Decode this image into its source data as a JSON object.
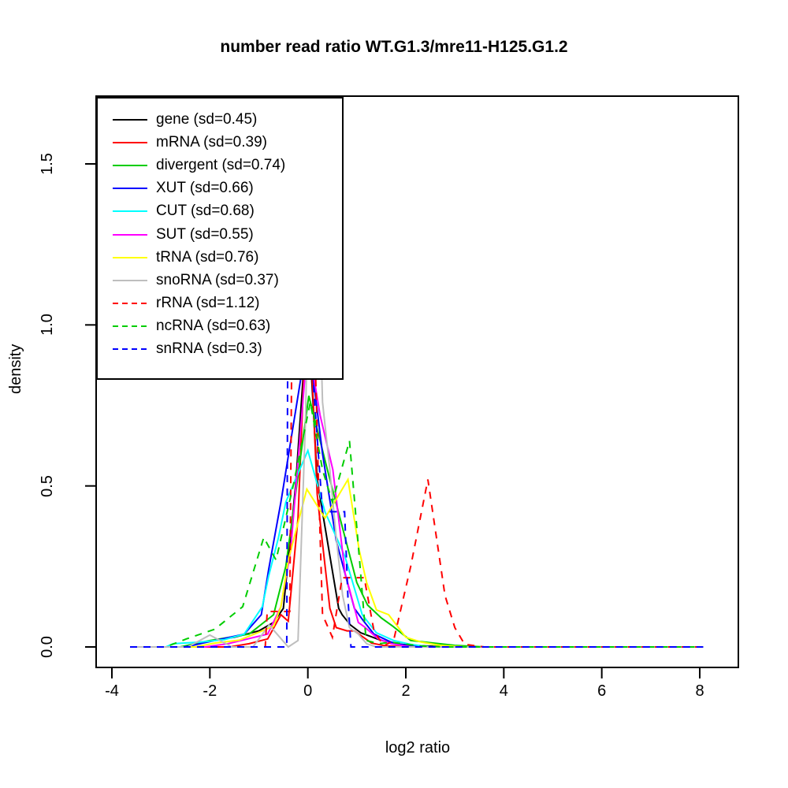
{
  "title": "number read ratio WT.G1.3/mre11-H125.G1.2",
  "axes": {
    "x": {
      "label": "log2 ratio",
      "tick_labels": [
        "-4",
        "-2",
        "0",
        "2",
        "4",
        "6",
        "8"
      ],
      "tick_values": [
        -4,
        -2,
        0,
        2,
        4,
        6,
        8
      ]
    },
    "y": {
      "label": "density",
      "tick_labels": [
        "0.0",
        "0.5",
        "1.0",
        "1.5"
      ],
      "tick_values": [
        0,
        0.5,
        1.0,
        1.5
      ]
    }
  },
  "legend": {
    "position": "top-left"
  },
  "chart_data": {
    "type": "line",
    "title": "number read ratio WT.G1.3/mre11-H125.G1.2",
    "xlabel": "log2 ratio",
    "ylabel": "density",
    "xlim": [
      -4.5,
      8.8
    ],
    "ylim": [
      0,
      1.71
    ],
    "grid": false,
    "legend_position": "top-left",
    "series": [
      {
        "id": "gene",
        "name": "gene (sd=0.45)",
        "color": "#000000",
        "style": "solid",
        "points": [
          [
            -3.63,
            0
          ],
          [
            -2.6,
            0
          ],
          [
            -2.1,
            0.015
          ],
          [
            -1.5,
            0.03
          ],
          [
            -1.0,
            0.05
          ],
          [
            -0.7,
            0.076
          ],
          [
            -0.5,
            0.12
          ],
          [
            -0.25,
            0.5
          ],
          [
            0,
            1.05
          ],
          [
            0.19,
            0.52
          ],
          [
            0.31,
            0.41
          ],
          [
            0.63,
            0.12
          ],
          [
            0.7,
            0.1
          ],
          [
            0.87,
            0.068
          ],
          [
            1.08,
            0.044
          ],
          [
            1.43,
            0.024
          ],
          [
            1.7,
            0.012
          ],
          [
            2.1,
            0.005
          ],
          [
            2.6,
            0.002
          ],
          [
            3.2,
            0
          ],
          [
            8.07,
            0
          ]
        ]
      },
      {
        "id": "mRNA",
        "name": "mRNA (sd=0.39)",
        "color": "#FF0000",
        "style": "solid",
        "points": [
          [
            -3.63,
            0
          ],
          [
            -1.6,
            0
          ],
          [
            -1.2,
            0.01
          ],
          [
            -0.82,
            0.025
          ],
          [
            -0.55,
            0.1
          ],
          [
            -0.4,
            0.08
          ],
          [
            -0.2,
            0.4
          ],
          [
            0,
            1.15
          ],
          [
            0.19,
            0.475
          ],
          [
            0.27,
            0.36
          ],
          [
            0.45,
            0.12
          ],
          [
            0.58,
            0.06
          ],
          [
            0.8,
            0.05
          ],
          [
            0.95,
            0.05
          ],
          [
            1.3,
            0.012
          ],
          [
            1.6,
            0.003
          ],
          [
            2.2,
            0
          ],
          [
            8.07,
            0
          ]
        ]
      },
      {
        "id": "divergent",
        "name": "divergent (sd=0.74)",
        "color": "#00CD00",
        "style": "solid",
        "points": [
          [
            -3.63,
            0
          ],
          [
            -2.6,
            0
          ],
          [
            -2.0,
            0.02
          ],
          [
            -1.2,
            0.04
          ],
          [
            -0.7,
            0.1
          ],
          [
            -0.45,
            0.25
          ],
          [
            0.02,
            0.78
          ],
          [
            0.4,
            0.55
          ],
          [
            0.76,
            0.34
          ],
          [
            1.0,
            0.2
          ],
          [
            1.22,
            0.13
          ],
          [
            1.5,
            0.09
          ],
          [
            1.72,
            0.066
          ],
          [
            2.1,
            0.02
          ],
          [
            2.52,
            0.013
          ],
          [
            3.0,
            0.005
          ],
          [
            3.6,
            0
          ],
          [
            8.07,
            0
          ]
        ]
      },
      {
        "id": "XUT",
        "name": "XUT (sd=0.66)",
        "color": "#0000FF",
        "style": "solid",
        "points": [
          [
            -3.63,
            0
          ],
          [
            -2.5,
            0
          ],
          [
            -1.9,
            0.02
          ],
          [
            -1.3,
            0.04
          ],
          [
            -0.95,
            0.1
          ],
          [
            -0.8,
            0.24
          ],
          [
            -0.55,
            0.45
          ],
          [
            0,
            0.97
          ],
          [
            0.3,
            0.6
          ],
          [
            0.58,
            0.33
          ],
          [
            0.95,
            0.12
          ],
          [
            1.14,
            0.08
          ],
          [
            1.35,
            0.04
          ],
          [
            1.7,
            0.015
          ],
          [
            2.0,
            0.005
          ],
          [
            2.4,
            0
          ],
          [
            8.07,
            0
          ]
        ]
      },
      {
        "id": "CUT",
        "name": "CUT (sd=0.68)",
        "color": "#00FFFF",
        "style": "solid",
        "points": [
          [
            -3.63,
            0
          ],
          [
            -2.9,
            0
          ],
          [
            -2.75,
            0.01
          ],
          [
            -2.2,
            0.015
          ],
          [
            -1.7,
            0.023
          ],
          [
            -1.3,
            0.04
          ],
          [
            -0.93,
            0.125
          ],
          [
            -0.8,
            0.22
          ],
          [
            -0.6,
            0.34
          ],
          [
            -0.45,
            0.45
          ],
          [
            0,
            0.61
          ],
          [
            0.35,
            0.42
          ],
          [
            0.76,
            0.28
          ],
          [
            1.11,
            0.1
          ],
          [
            1.4,
            0.044
          ],
          [
            1.75,
            0.02
          ],
          [
            2.1,
            0.008
          ],
          [
            2.5,
            0
          ],
          [
            8.07,
            0
          ]
        ]
      },
      {
        "id": "SUT",
        "name": "SUT (sd=0.55)",
        "color": "#FF00FF",
        "style": "solid",
        "points": [
          [
            -3.63,
            0
          ],
          [
            -2.1,
            0
          ],
          [
            -1.63,
            0.01
          ],
          [
            -0.82,
            0.04
          ],
          [
            -0.55,
            0.125
          ],
          [
            -0.35,
            0.3
          ],
          [
            0,
            0.95
          ],
          [
            0.25,
            0.72
          ],
          [
            0.51,
            0.55
          ],
          [
            0.76,
            0.23
          ],
          [
            1.03,
            0.076
          ],
          [
            1.14,
            0.064
          ],
          [
            1.43,
            0.026
          ],
          [
            1.7,
            0.01
          ],
          [
            2.1,
            0
          ],
          [
            8.07,
            0
          ]
        ]
      },
      {
        "id": "tRNA",
        "name": "tRNA (sd=0.76)",
        "color": "#FFFF00",
        "style": "solid",
        "points": [
          [
            -3.63,
            0
          ],
          [
            -2.3,
            0
          ],
          [
            -1.9,
            0.012
          ],
          [
            -1.4,
            0.021
          ],
          [
            -0.7,
            0.064
          ],
          [
            -0.55,
            0.125
          ],
          [
            -0.4,
            0.27
          ],
          [
            -0.02,
            0.49
          ],
          [
            0.35,
            0.4
          ],
          [
            0.82,
            0.52
          ],
          [
            1.05,
            0.3
          ],
          [
            1.2,
            0.2
          ],
          [
            1.4,
            0.115
          ],
          [
            1.65,
            0.1
          ],
          [
            2.0,
            0.03
          ],
          [
            2.32,
            0.015
          ],
          [
            2.7,
            0.005
          ],
          [
            3.2,
            0
          ],
          [
            8.07,
            0
          ]
        ]
      },
      {
        "id": "snoRNA",
        "name": "snoRNA (sd=0.37)",
        "color": "#BEBEBE",
        "style": "solid",
        "points": [
          [
            -3.63,
            0
          ],
          [
            -2.45,
            0
          ],
          [
            -2.0,
            0.037
          ],
          [
            -1.55,
            0
          ],
          [
            -1.12,
            0
          ],
          [
            -0.79,
            0.068
          ],
          [
            -0.4,
            0
          ],
          [
            -0.2,
            0.02
          ],
          [
            -0.05,
            0.7
          ],
          [
            0.08,
            1.6
          ],
          [
            0.15,
            1.6
          ],
          [
            0.3,
            0.76
          ],
          [
            0.45,
            0.55
          ],
          [
            0.58,
            0.34
          ],
          [
            0.71,
            0.16
          ],
          [
            0.85,
            0.06
          ],
          [
            1.03,
            0.04
          ],
          [
            1.2,
            0.01
          ],
          [
            1.4,
            0
          ],
          [
            8.07,
            0
          ]
        ]
      },
      {
        "id": "rRNA",
        "name": "rRNA (sd=1.12)",
        "color": "#FF0000",
        "style": "dashed",
        "points": [
          [
            -3.63,
            0
          ],
          [
            -0.87,
            0
          ],
          [
            -0.83,
            0.11
          ],
          [
            -0.37,
            0.11
          ],
          [
            -0.33,
            0.9
          ],
          [
            -0.15,
            1.35
          ],
          [
            0.08,
            1.3
          ],
          [
            0.22,
            0.5
          ],
          [
            0.3,
            0.1
          ],
          [
            0.5,
            0.03
          ],
          [
            0.7,
            0.215
          ],
          [
            1.15,
            0.215
          ],
          [
            1.35,
            0.05
          ],
          [
            1.55,
            0.003
          ],
          [
            1.75,
            0.02
          ],
          [
            2.1,
            0.25
          ],
          [
            2.45,
            0.52
          ],
          [
            2.8,
            0.16
          ],
          [
            3.0,
            0.06
          ],
          [
            3.2,
            0.008
          ],
          [
            3.6,
            0
          ],
          [
            8.07,
            0
          ]
        ]
      },
      {
        "id": "ncRNA",
        "name": "ncRNA (sd=0.63)",
        "color": "#00CD00",
        "style": "dashed",
        "points": [
          [
            -3.63,
            0
          ],
          [
            -2.9,
            0
          ],
          [
            -2.48,
            0.025
          ],
          [
            -1.9,
            0.055
          ],
          [
            -1.33,
            0.125
          ],
          [
            -0.9,
            0.34
          ],
          [
            -0.65,
            0.27
          ],
          [
            -0.3,
            0.5
          ],
          [
            0.05,
            0.76
          ],
          [
            0.3,
            0.55
          ],
          [
            0.5,
            0.45
          ],
          [
            0.85,
            0.64
          ],
          [
            1.06,
            0.26
          ],
          [
            1.19,
            0.02
          ],
          [
            1.45,
            0.01
          ],
          [
            1.7,
            0.015
          ],
          [
            1.93,
            0.01
          ],
          [
            2.3,
            0.003
          ],
          [
            2.8,
            0
          ],
          [
            8.07,
            0
          ]
        ]
      },
      {
        "id": "snRNA",
        "name": "snRNA (sd=0.3)",
        "color": "#0000FF",
        "style": "dashed",
        "points": [
          [
            -3.63,
            0
          ],
          [
            -0.43,
            0
          ],
          [
            -0.41,
            1.0
          ],
          [
            -0.35,
            1.45
          ],
          [
            -0.05,
            1.45
          ],
          [
            0.12,
            0.8
          ],
          [
            0.3,
            0.42
          ],
          [
            0.75,
            0.42
          ],
          [
            0.82,
            0.15
          ],
          [
            0.88,
            0
          ],
          [
            8.07,
            0
          ]
        ]
      }
    ]
  }
}
